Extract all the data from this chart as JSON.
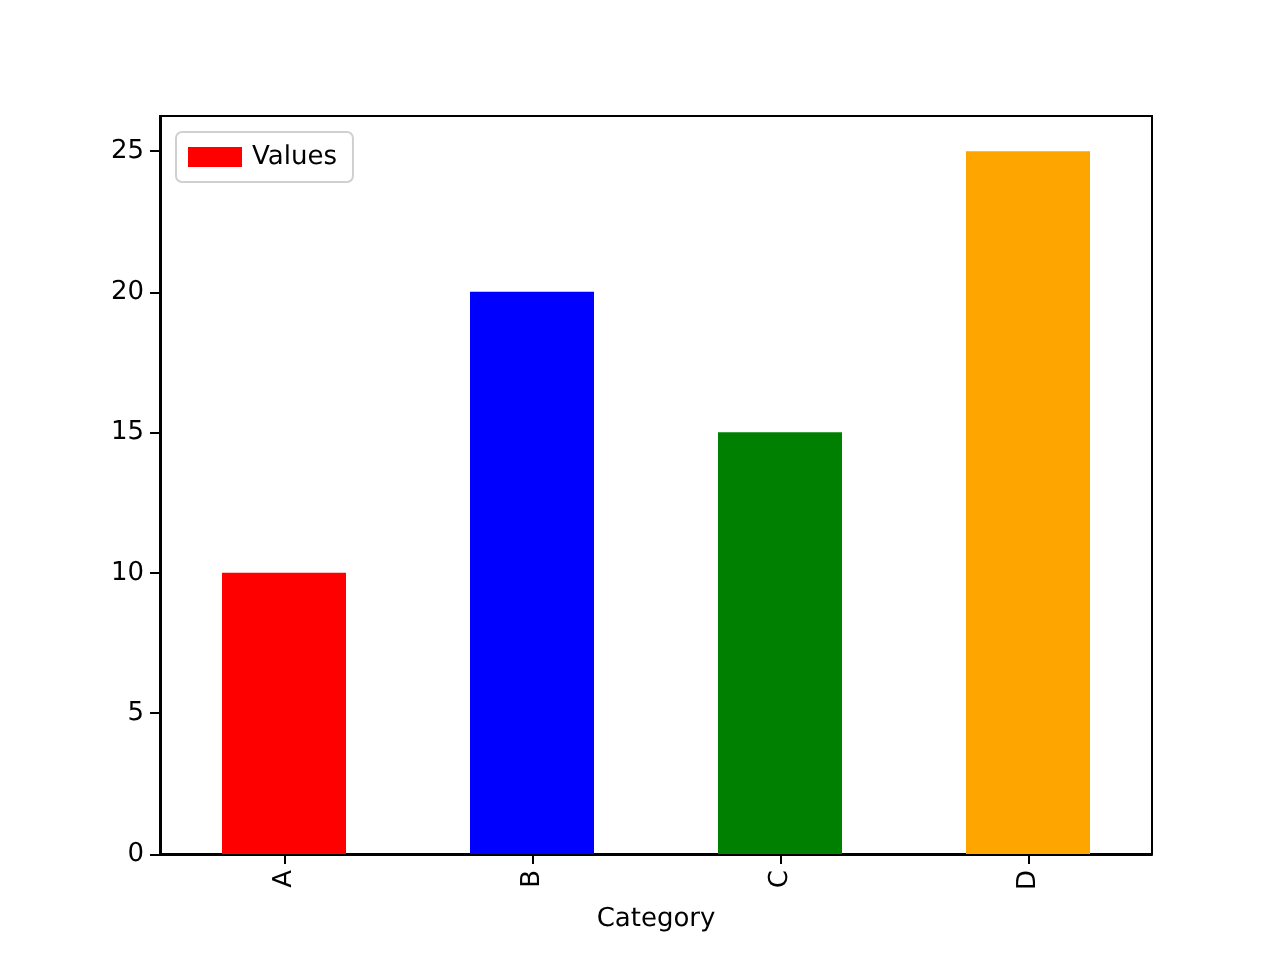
{
  "chart_data": {
    "type": "bar",
    "xlabel": "Category",
    "categories": [
      "A",
      "B",
      "C",
      "D"
    ],
    "series": [
      {
        "name": "Values",
        "colors": [
          "#ff0000",
          "#0000ff",
          "#008000",
          "#ffa500"
        ],
        "values": [
          10,
          20,
          15,
          25
        ]
      }
    ],
    "ylim": [
      0,
      26.25
    ],
    "yticks": [
      0,
      5,
      10,
      15,
      20,
      25
    ],
    "legend": "top left"
  }
}
